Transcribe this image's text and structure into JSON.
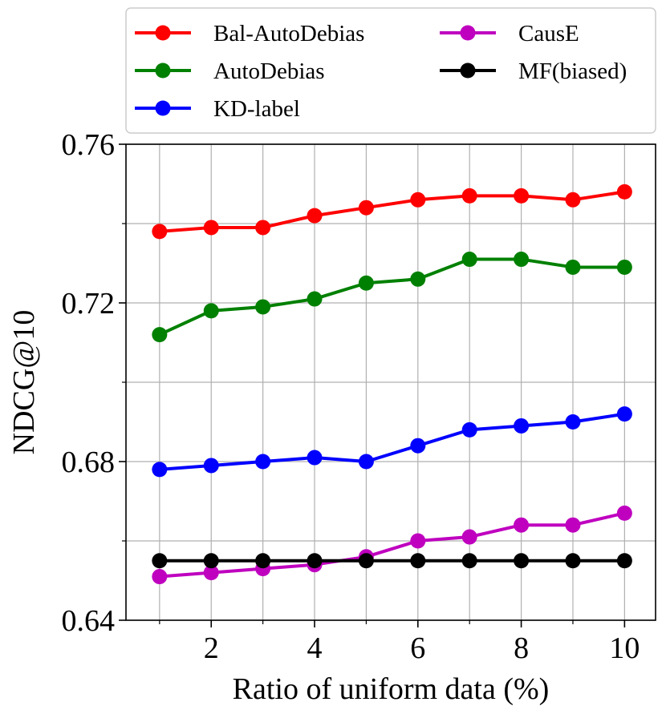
{
  "chart_data": {
    "type": "line",
    "title": "",
    "xlabel": "Ratio of uniform data (%)",
    "ylabel": "NDCG@10",
    "x": [
      1,
      2,
      3,
      4,
      5,
      6,
      7,
      8,
      9,
      10
    ],
    "xlim": [
      0.35,
      10.6
    ],
    "ylim": [
      0.64,
      0.76
    ],
    "xticks": [
      2,
      4,
      6,
      8,
      10
    ],
    "xtick_labels": [
      "2",
      "4",
      "6",
      "8",
      "10"
    ],
    "xminor_ticks": [
      1,
      3,
      5,
      7,
      9
    ],
    "yticks": [
      0.64,
      0.68,
      0.72,
      0.76
    ],
    "ytick_labels": [
      "0.64",
      "0.68",
      "0.72",
      "0.76"
    ],
    "yminor_ticks": [
      0.66,
      0.7,
      0.74
    ],
    "grid": true,
    "legend_position": "top",
    "series": [
      {
        "name": "Bal-AutoDebias",
        "color": "#ff0000",
        "values": [
          0.738,
          0.739,
          0.739,
          0.742,
          0.744,
          0.746,
          0.747,
          0.747,
          0.746,
          0.748
        ]
      },
      {
        "name": "AutoDebias",
        "color": "#008000",
        "values": [
          0.712,
          0.718,
          0.719,
          0.721,
          0.725,
          0.726,
          0.731,
          0.731,
          0.729,
          0.729
        ]
      },
      {
        "name": "KD-label",
        "color": "#0000ff",
        "values": [
          0.678,
          0.679,
          0.68,
          0.681,
          0.68,
          0.684,
          0.688,
          0.689,
          0.69,
          0.692
        ]
      },
      {
        "name": "CausE",
        "color": "#bf00bf",
        "values": [
          0.651,
          0.652,
          0.653,
          0.654,
          0.656,
          0.66,
          0.661,
          0.664,
          0.664,
          0.667
        ]
      },
      {
        "name": "MF(biased)",
        "color": "#000000",
        "values": [
          0.655,
          0.655,
          0.655,
          0.655,
          0.655,
          0.655,
          0.655,
          0.655,
          0.655,
          0.655
        ]
      }
    ]
  }
}
